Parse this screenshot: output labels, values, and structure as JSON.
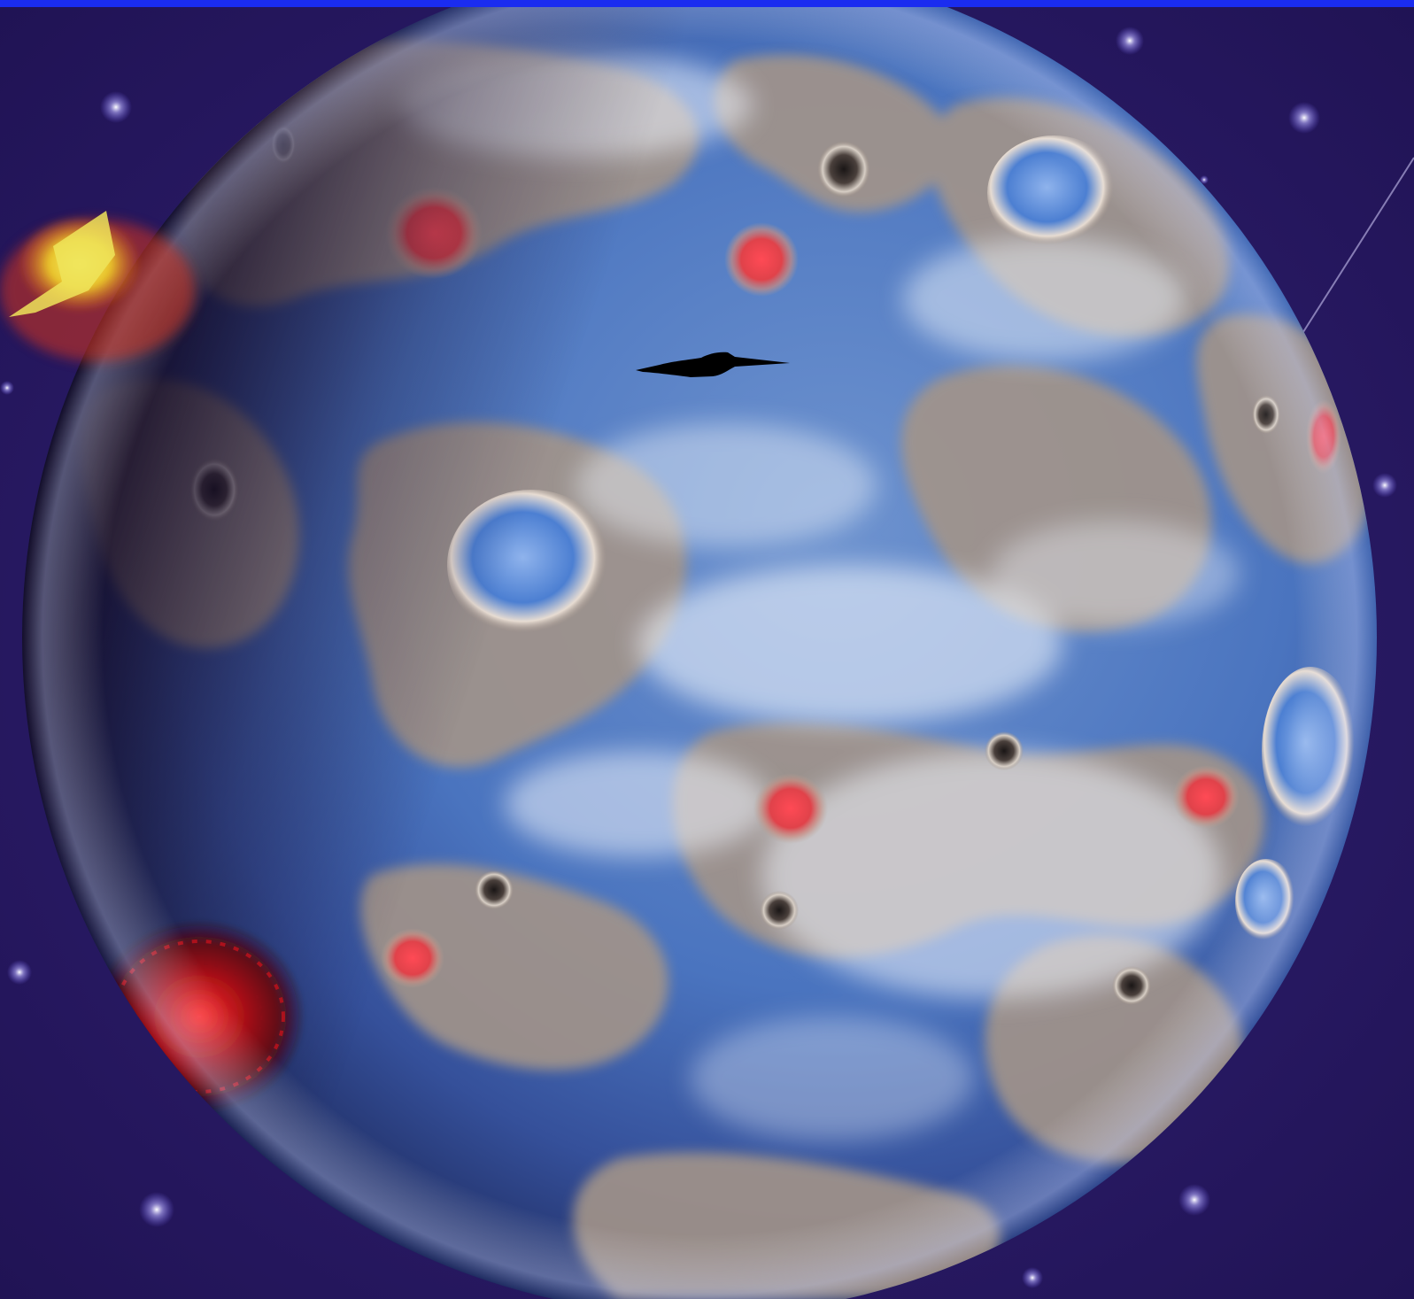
{
  "scene": {
    "top_bar_color": "#1a2cf0",
    "space_color": "#2b1c6c",
    "space_color_deep": "#1f1252",
    "star_color": "#c9c4ff",
    "planet": {
      "ocean_color": "#4a78c4",
      "ocean_dark": "#23356e",
      "land_color": "#9c8f86",
      "cloud_color": "#e8eef7",
      "crater_red_color": "#e0424a",
      "night_side_color": "#120a22"
    },
    "flare_color": "#e8e04a",
    "ship_color": "#000000",
    "icons": [
      "planet-icon",
      "spaceship-icon",
      "star-icon",
      "solar-flare-icon",
      "shooting-star-icon"
    ]
  }
}
